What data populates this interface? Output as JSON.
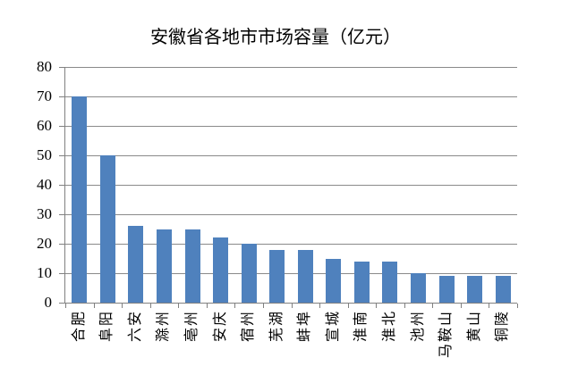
{
  "title": "安徽省各地市市场容量（亿元）",
  "chart_data": {
    "type": "bar",
    "title": "安徽省各地市市场容量（亿元）",
    "categories": [
      "合肥",
      "阜阳",
      "六安",
      "滁州",
      "亳州",
      "安庆",
      "宿州",
      "芜湖",
      "蚌埠",
      "宣城",
      "淮南",
      "淮北",
      "池州",
      "马鞍山",
      "黄山",
      "铜陵"
    ],
    "values": [
      70,
      50,
      26,
      25,
      25,
      22,
      20,
      18,
      18,
      15,
      14,
      14,
      10,
      9,
      9,
      9
    ],
    "xlabel": "",
    "ylabel": "",
    "ylim": [
      0,
      80
    ],
    "yticks": [
      0,
      10,
      20,
      30,
      40,
      50,
      60,
      70,
      80
    ],
    "grid": true,
    "legend_position": "none",
    "xlabel_rotation_deg": -90,
    "bar_color": "#4f81bd",
    "axis_color": "#808080",
    "gridline_color": "#8a8a8a",
    "text_color": "#000000",
    "background_color": "#ffffff"
  }
}
